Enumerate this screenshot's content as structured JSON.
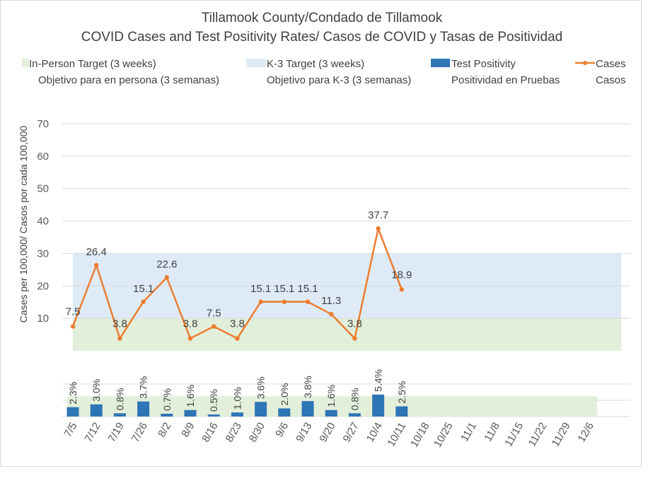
{
  "chart_data": {
    "type": "line",
    "title": "Tillamook County/Condado de Tillamook",
    "subtitle": "COVID Cases and Test Positivity Rates/ Casos de COVID y Tasas de Positividad",
    "ylabel": "Cases per 100,000/ Casos por cada 100,000",
    "ylim": [
      0,
      70
    ],
    "yticks": [
      10,
      20,
      30,
      40,
      50,
      60,
      70
    ],
    "categories": [
      "7/5",
      "7/12",
      "7/19",
      "7/26",
      "8/2",
      "8/9",
      "8/16",
      "8/23",
      "8/30",
      "9/6",
      "9/13",
      "9/20",
      "9/27",
      "10/4",
      "10/11",
      "10/18",
      "10/25",
      "11/1",
      "11/8",
      "11/15",
      "11/22",
      "11/29",
      "12/6"
    ],
    "cases": [
      7.5,
      26.4,
      3.8,
      15.1,
      22.6,
      3.8,
      7.5,
      3.8,
      15.1,
      15.1,
      15.1,
      11.3,
      3.8,
      37.7,
      18.9
    ],
    "case_labels": [
      "7.5",
      "26.4",
      "3.8",
      "15.1",
      "22.6",
      "3.8",
      "7.5",
      "3.8",
      "15.1",
      "15.1",
      "15.1",
      "11.3",
      "3.8",
      "37.7",
      "18.9"
    ],
    "test_positivity": [
      2.3,
      3.0,
      0.8,
      3.7,
      0.7,
      1.6,
      0.5,
      1.0,
      3.6,
      2.0,
      3.8,
      1.6,
      0.8,
      5.4,
      2.5
    ],
    "positivity_labels": [
      "2.3%",
      "3.0%",
      "0.8%",
      "3.7%",
      "0.7%",
      "1.6%",
      "0.5%",
      "1.0%",
      "3.6%",
      "2.0%",
      "3.8%",
      "1.6%",
      "0.8%",
      "5.4%",
      "2.5%"
    ],
    "positivity_ylim": [
      0,
      8
    ],
    "positivity_target": 5,
    "in_person_target": 10,
    "k3_target": 30,
    "legend": [
      {
        "key": "in_person",
        "line1": "In-Person Target (3 weeks)",
        "line2": "Objetivo para en persona (3 semanas)",
        "color": "#e2efda"
      },
      {
        "key": "k3",
        "line1": "K-3 Target (3 weeks)",
        "line2": "Objetivo para K-3 (3 semanas)",
        "color": "#deebf7"
      },
      {
        "key": "positivity",
        "line1": "Test Positivity",
        "line2": "Positividad en Pruebas",
        "color": "#2e75b6"
      },
      {
        "key": "cases",
        "line1": "Cases",
        "line2": "Casos",
        "color": "#ed7d31"
      }
    ],
    "legend_position": "top",
    "grid": true
  }
}
